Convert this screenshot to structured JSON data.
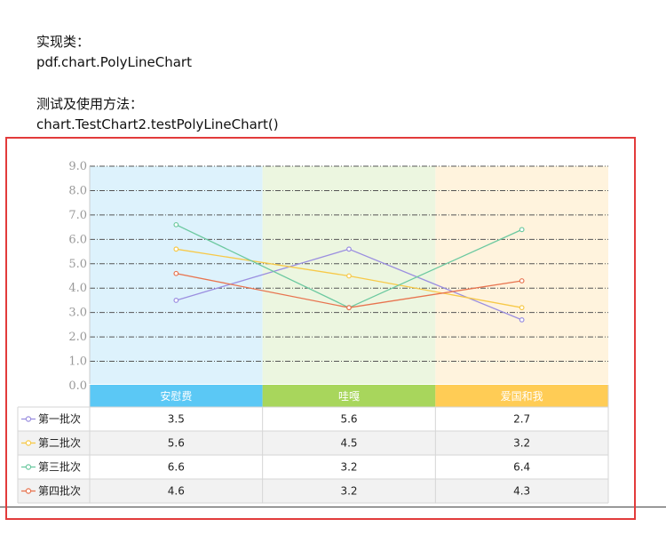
{
  "doc": {
    "class_label": "实现类：",
    "class_name": "pdf.chart.PolyLineChart",
    "usage_label": "测试及使用方法：",
    "usage_call": "chart.TestChart2.testPolyLineChart()"
  },
  "chart_data": {
    "type": "line",
    "categories": [
      "安慰费",
      "哇嘎",
      "爱国和我"
    ],
    "category_colors": [
      "#5bc8f5",
      "#a8d65c",
      "#ffcc55"
    ],
    "band_colors": [
      "#ddf2fc",
      "#ecf6e0",
      "#fff3dd"
    ],
    "ylim": [
      0,
      9
    ],
    "yticks": [
      "0.0",
      "1.0",
      "2.0",
      "3.0",
      "4.0",
      "5.0",
      "6.0",
      "7.0",
      "8.0",
      "9.0"
    ],
    "grid": true,
    "series": [
      {
        "name": "第一批次",
        "color": "#9b8fe0",
        "values": [
          3.5,
          5.6,
          2.7
        ],
        "labels": [
          "3.5",
          "5.6",
          "2.7"
        ]
      },
      {
        "name": "第二批次",
        "color": "#f7c948",
        "values": [
          5.6,
          4.5,
          3.2
        ],
        "labels": [
          "5.6",
          "4.5",
          "3.2"
        ]
      },
      {
        "name": "第三批次",
        "color": "#6cc9a0",
        "values": [
          6.6,
          3.2,
          6.4
        ],
        "labels": [
          "6.6",
          "3.2",
          "6.4"
        ]
      },
      {
        "name": "第四批次",
        "color": "#e8744f",
        "values": [
          4.6,
          3.2,
          4.3
        ],
        "labels": [
          "4.6",
          "3.2",
          "4.3"
        ]
      }
    ]
  }
}
